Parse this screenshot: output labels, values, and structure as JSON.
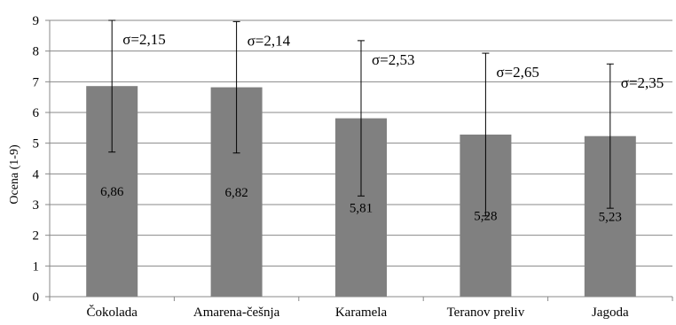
{
  "chart_data": {
    "type": "bar",
    "title": "",
    "xlabel": "",
    "ylabel": "Ocena (1-9)",
    "ylim": [
      0,
      9
    ],
    "yticks": [
      0,
      1,
      2,
      3,
      4,
      5,
      6,
      7,
      8,
      9
    ],
    "grid": true,
    "legend": "none",
    "categories": [
      "Čokolada",
      "Amarena-češnja",
      "Karamela",
      "Teranov preliv",
      "Jagoda"
    ],
    "values": [
      6.86,
      6.82,
      5.81,
      5.28,
      5.23
    ],
    "value_labels": [
      "6,86",
      "6,82",
      "5,81",
      "5,28",
      "5,23"
    ],
    "error_sd": [
      2.15,
      2.14,
      2.53,
      2.65,
      2.35
    ],
    "sd_labels": [
      "σ=2,15",
      "σ=2,14",
      "σ=2,53",
      "σ=2,65",
      "σ=2,35"
    ],
    "colors": {
      "bar": "#808080",
      "grid": "#888888",
      "axis": "#888888",
      "error": "#000000"
    }
  }
}
